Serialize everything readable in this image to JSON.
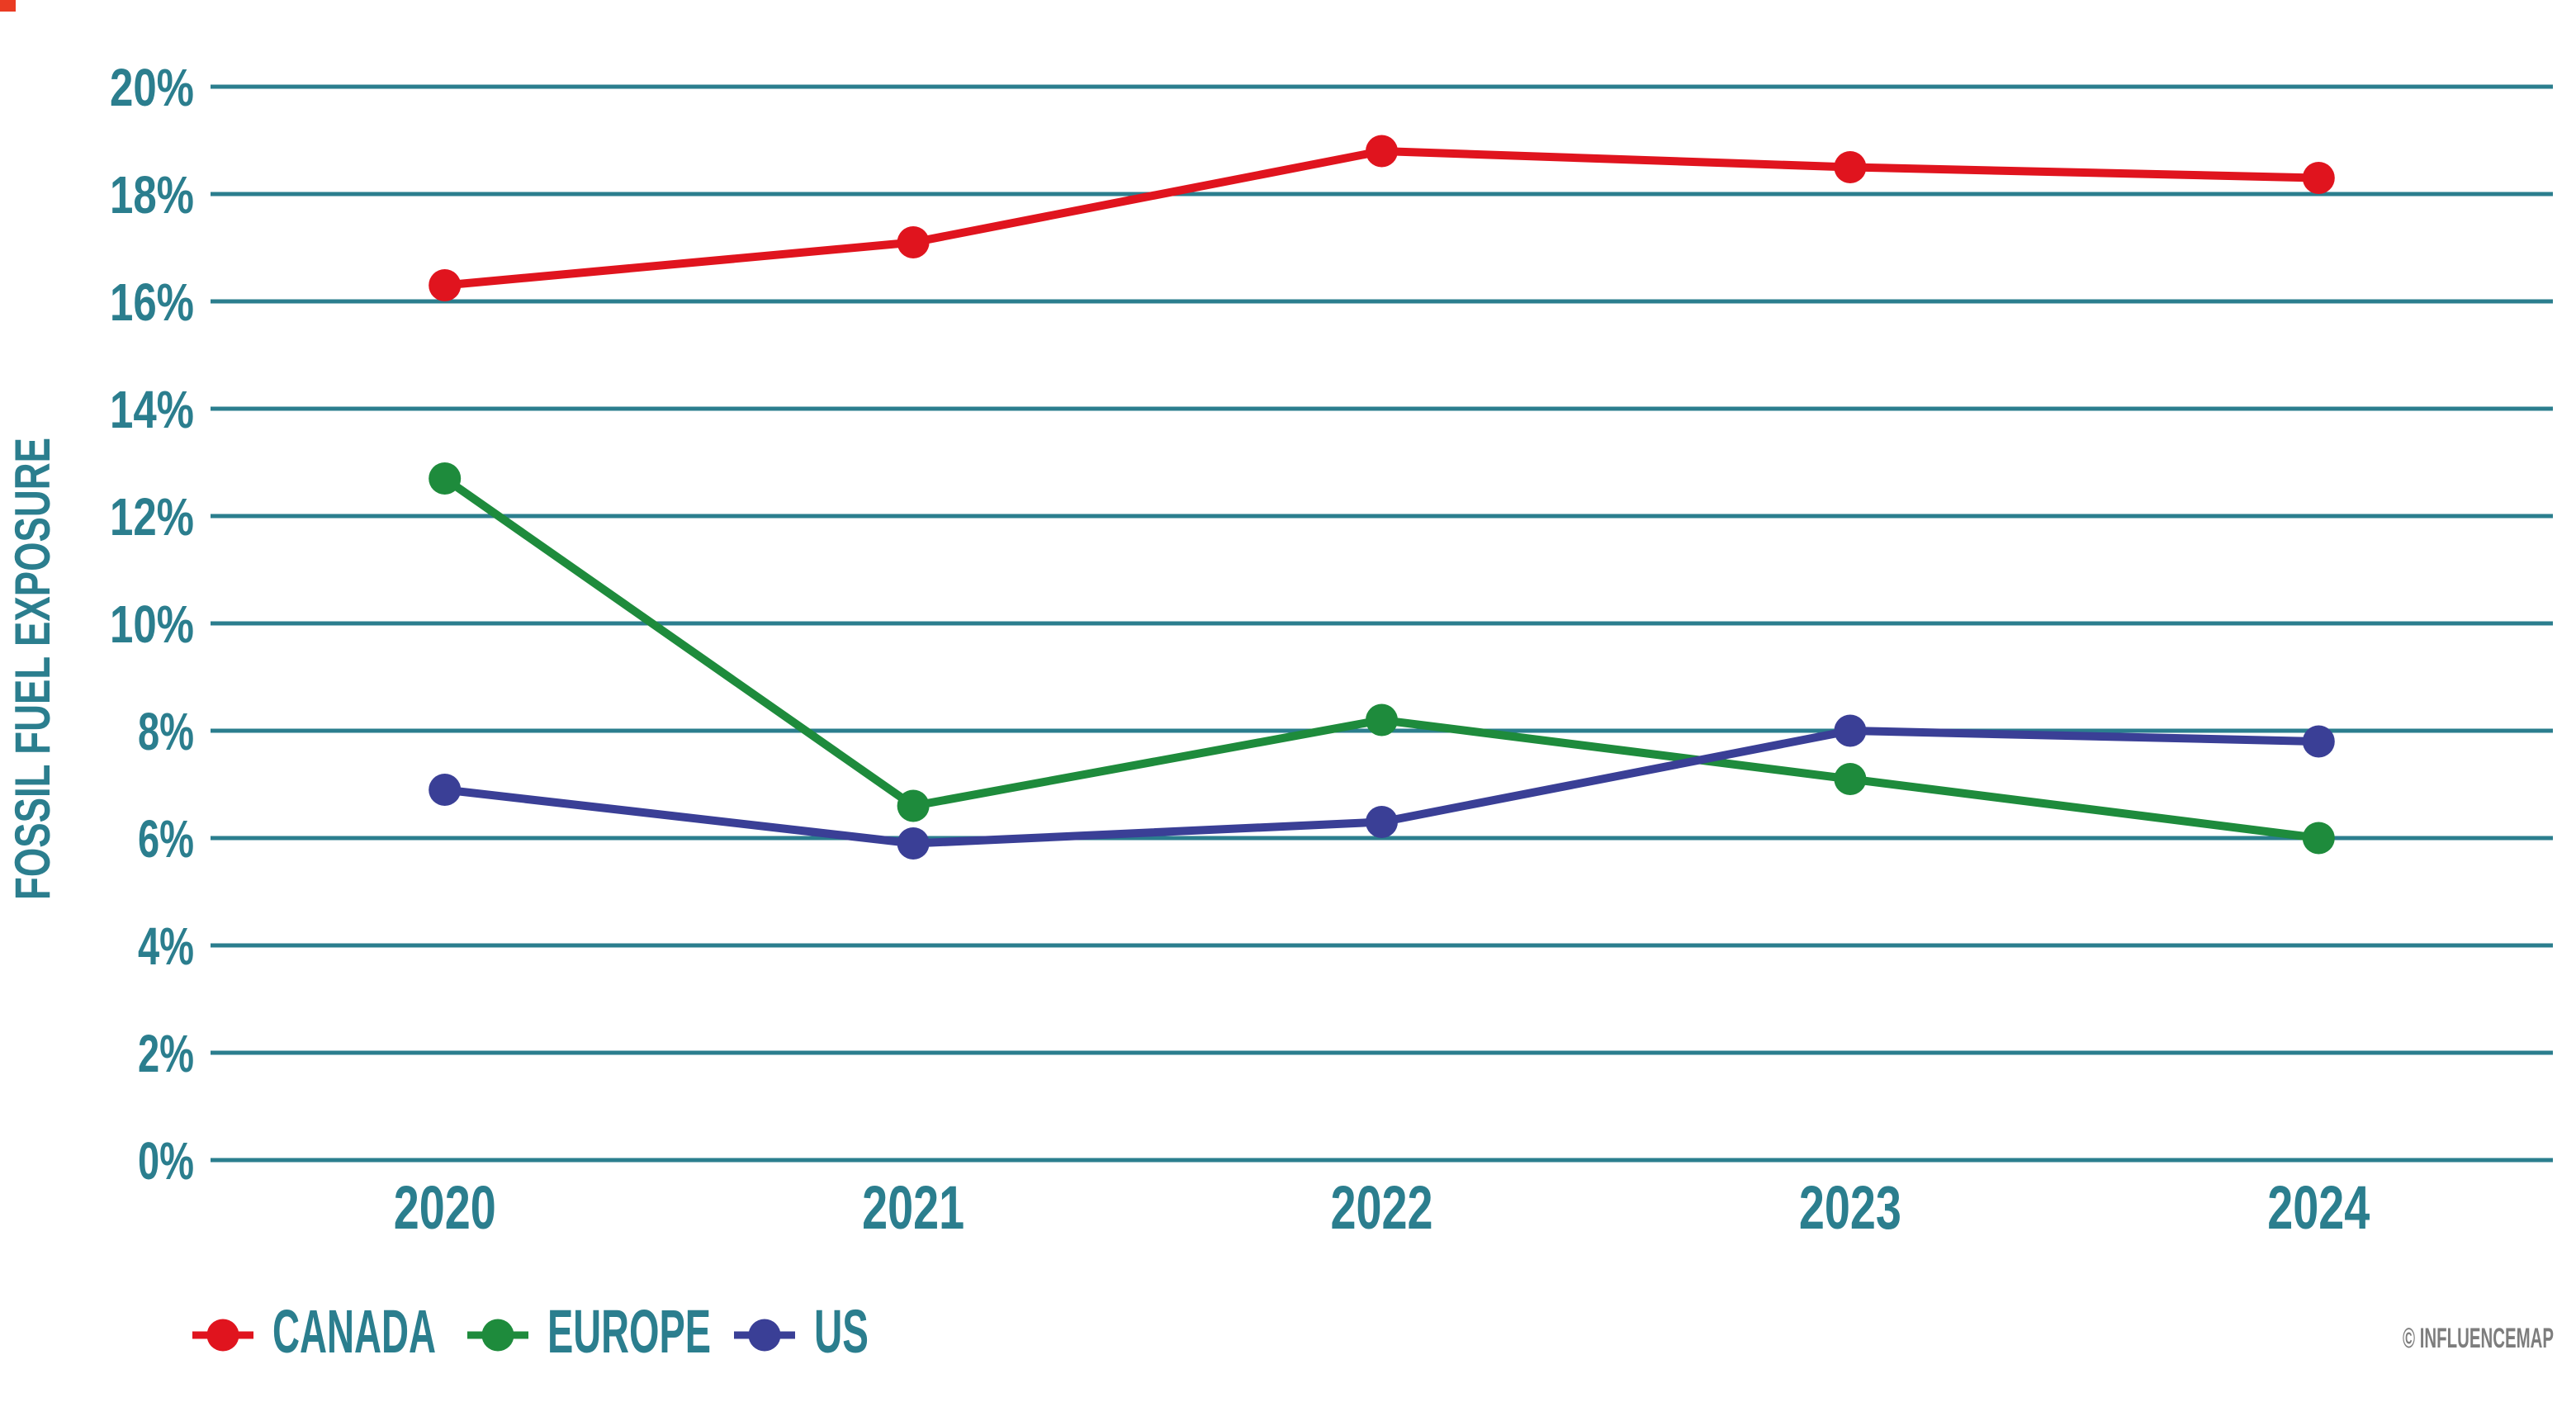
{
  "page": {
    "corner_mark_color": "#ea3b23"
  },
  "watermark": {
    "text": "© INFLUENCEMAP",
    "color": "#7d7d7d"
  },
  "chart_data": {
    "type": "line",
    "title": "",
    "xlabel": "",
    "ylabel": "FOSSIL FUEL EXPOSURE",
    "categories": [
      "2020",
      "2021",
      "2022",
      "2023",
      "2024"
    ],
    "y_ticks": [
      "0%",
      "2%",
      "4%",
      "6%",
      "8%",
      "10%",
      "12%",
      "14%",
      "16%",
      "18%",
      "20%"
    ],
    "ylim": [
      0,
      20
    ],
    "y_tick_step": 2,
    "grid": "horizontal",
    "axis_color": "#2b7e8e",
    "legend_position": "bottom-left",
    "marker_style": "filled-circle-on-line",
    "series": [
      {
        "name": "CANADA",
        "color": "#e0141e",
        "values": [
          16.3,
          17.1,
          18.8,
          18.5,
          18.3
        ]
      },
      {
        "name": "EUROPE",
        "color": "#1e8b3c",
        "values": [
          12.7,
          6.6,
          8.2,
          7.1,
          6.0
        ]
      },
      {
        "name": "US",
        "color": "#3a3f96",
        "values": [
          6.9,
          5.9,
          6.3,
          8.0,
          7.8
        ]
      }
    ]
  }
}
